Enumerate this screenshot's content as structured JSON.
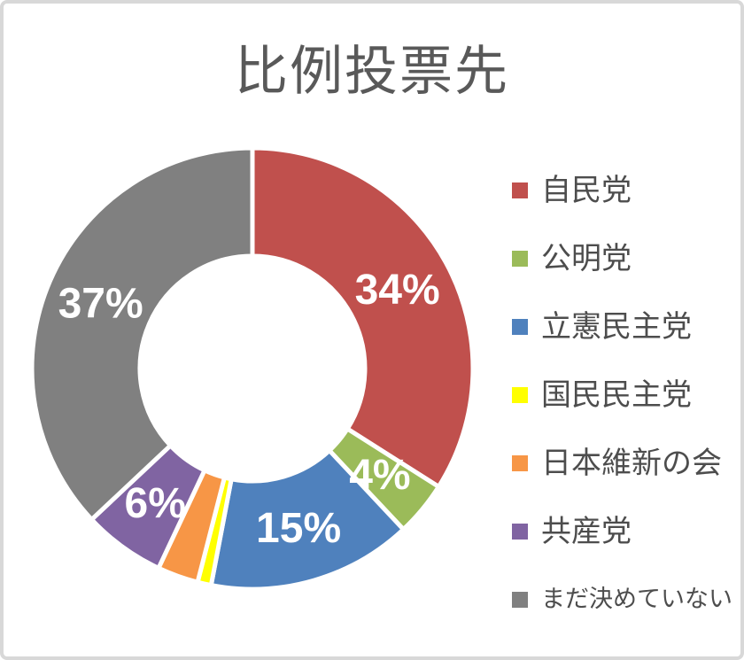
{
  "frame": {
    "background": "#ffffff",
    "border_color": "#d8d8d8"
  },
  "chart_data": {
    "type": "pie",
    "subtype": "donut",
    "title": "比例投票先",
    "title_color": "#595959",
    "start_angle_deg": 0,
    "direction": "clockwise",
    "hole_ratio": 0.51,
    "slice_border_color": "#ffffff",
    "data_label_color": "#ffffff",
    "legend_position": "right",
    "legend_text_color": "#4d4d4d",
    "total": 100,
    "series": [
      {
        "name": "自民党",
        "value": 34,
        "color": "#c0504d",
        "data_label": "34%"
      },
      {
        "name": "公明党",
        "value": 4,
        "color": "#9bbb59",
        "data_label": "4%"
      },
      {
        "name": "立憲民主党",
        "value": 15,
        "color": "#4f81bd",
        "data_label": "15%"
      },
      {
        "name": "国民民主党",
        "value": 1,
        "color": "#ffff00",
        "data_label": ""
      },
      {
        "name": "日本維新の会",
        "value": 3,
        "color": "#f79646",
        "data_label": ""
      },
      {
        "name": "共産党",
        "value": 6,
        "color": "#8064a2",
        "data_label": "6%"
      },
      {
        "name": "まだ決めていない",
        "value": 37,
        "color": "#808080",
        "data_label": "37%"
      }
    ]
  }
}
